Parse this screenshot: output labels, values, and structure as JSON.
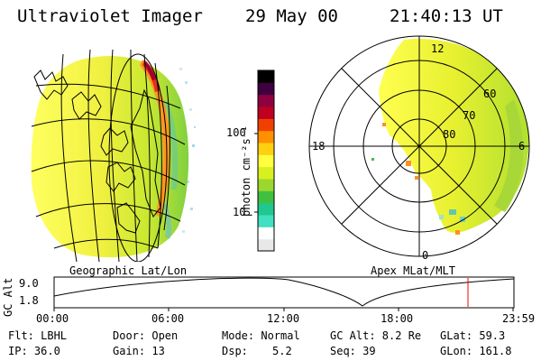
{
  "header": {
    "title": "Ultraviolet Imager",
    "date": "29 May 00",
    "time": "21:40:13 UT"
  },
  "colorbar": {
    "unit_label": "photon cm⁻²s⁻¹",
    "ticks": [
      "100",
      "10"
    ],
    "colors": [
      "#e8e8e8",
      "#ffffff",
      "#40e0c0",
      "#20c890",
      "#40c040",
      "#9ad830",
      "#d8f020",
      "#ffff40",
      "#ffd010",
      "#ff9000",
      "#f04000",
      "#c00020",
      "#900040",
      "#400040",
      "#000000"
    ]
  },
  "geographic_panel": {
    "label": "Geographic Lat/Lon"
  },
  "polar_panel": {
    "label": "Apex MLat/MLT",
    "mlt_labels": {
      "top": "12",
      "left": "18",
      "right": "6",
      "bottom": "0"
    },
    "lat_labels": [
      "60",
      "70",
      "80"
    ]
  },
  "altitude_plot": {
    "axis_label": "GC Alt",
    "y_ticks": [
      "9.0",
      "1.8"
    ],
    "x_ticks": [
      "00:00",
      "06:00",
      "12:00",
      "18:00",
      "23:59"
    ],
    "marker_color": "#ff0000"
  },
  "status": {
    "filter": "Flt: LBHL",
    "ip": "IP: 36.0",
    "door": "Door: Open",
    "gain": "Gain: 13",
    "mode": "Mode: Normal",
    "dsp_label": "Dsp:",
    "dsp_value": "5.2",
    "gc_alt": "GC Alt: 8.2 Re",
    "seq": "Seq: 39",
    "glat": "GLat: 59.3",
    "glon": "GLon: 161.8"
  }
}
